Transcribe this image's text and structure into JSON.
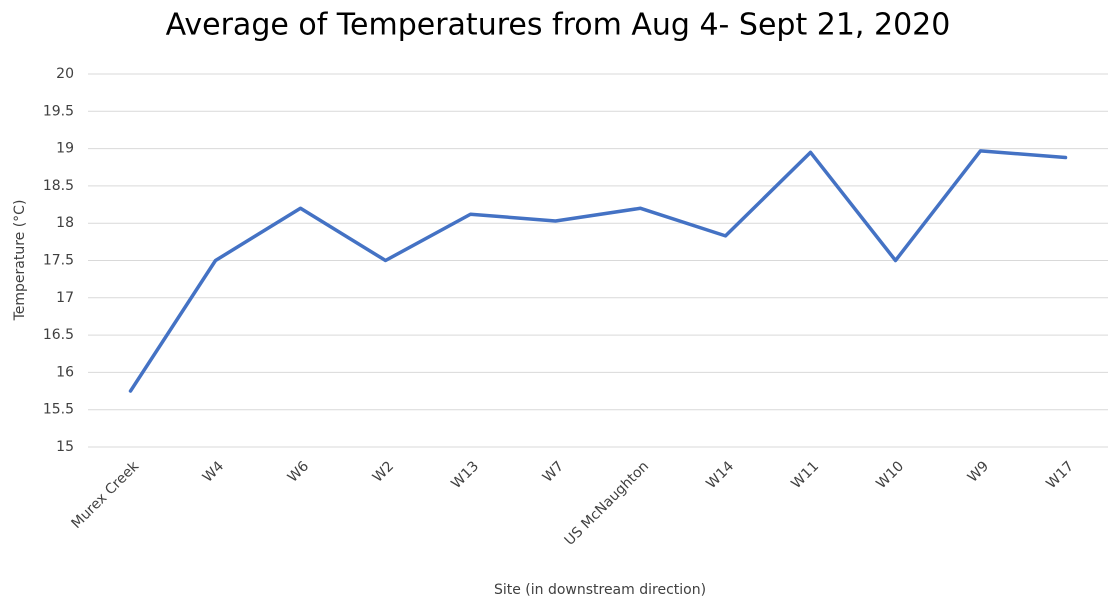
{
  "chart_data": {
    "type": "line",
    "title": "Average of Temperatures from Aug 4- Sept 21, 2020",
    "x_label": "Site (in downstream direction)",
    "y_label": "Temperature  (°C)",
    "categories": [
      "Murex Creek",
      "W4",
      "W6",
      "W2",
      "W13",
      "W7",
      "US McNaughton",
      "W14",
      "W11",
      "W10",
      "W9",
      "W17"
    ],
    "series": [
      {
        "name": "Average",
        "color": "#4472c4",
        "values": [
          15.75,
          17.5,
          18.2,
          17.5,
          18.12,
          18.03,
          18.2,
          17.83,
          18.95,
          17.5,
          18.97,
          18.88
        ]
      }
    ],
    "ylim": [
      15,
      20
    ],
    "yticks": [
      15,
      15.5,
      16,
      16.5,
      17,
      17.5,
      18,
      18.5,
      19,
      19.5,
      20
    ],
    "grid": true
  }
}
